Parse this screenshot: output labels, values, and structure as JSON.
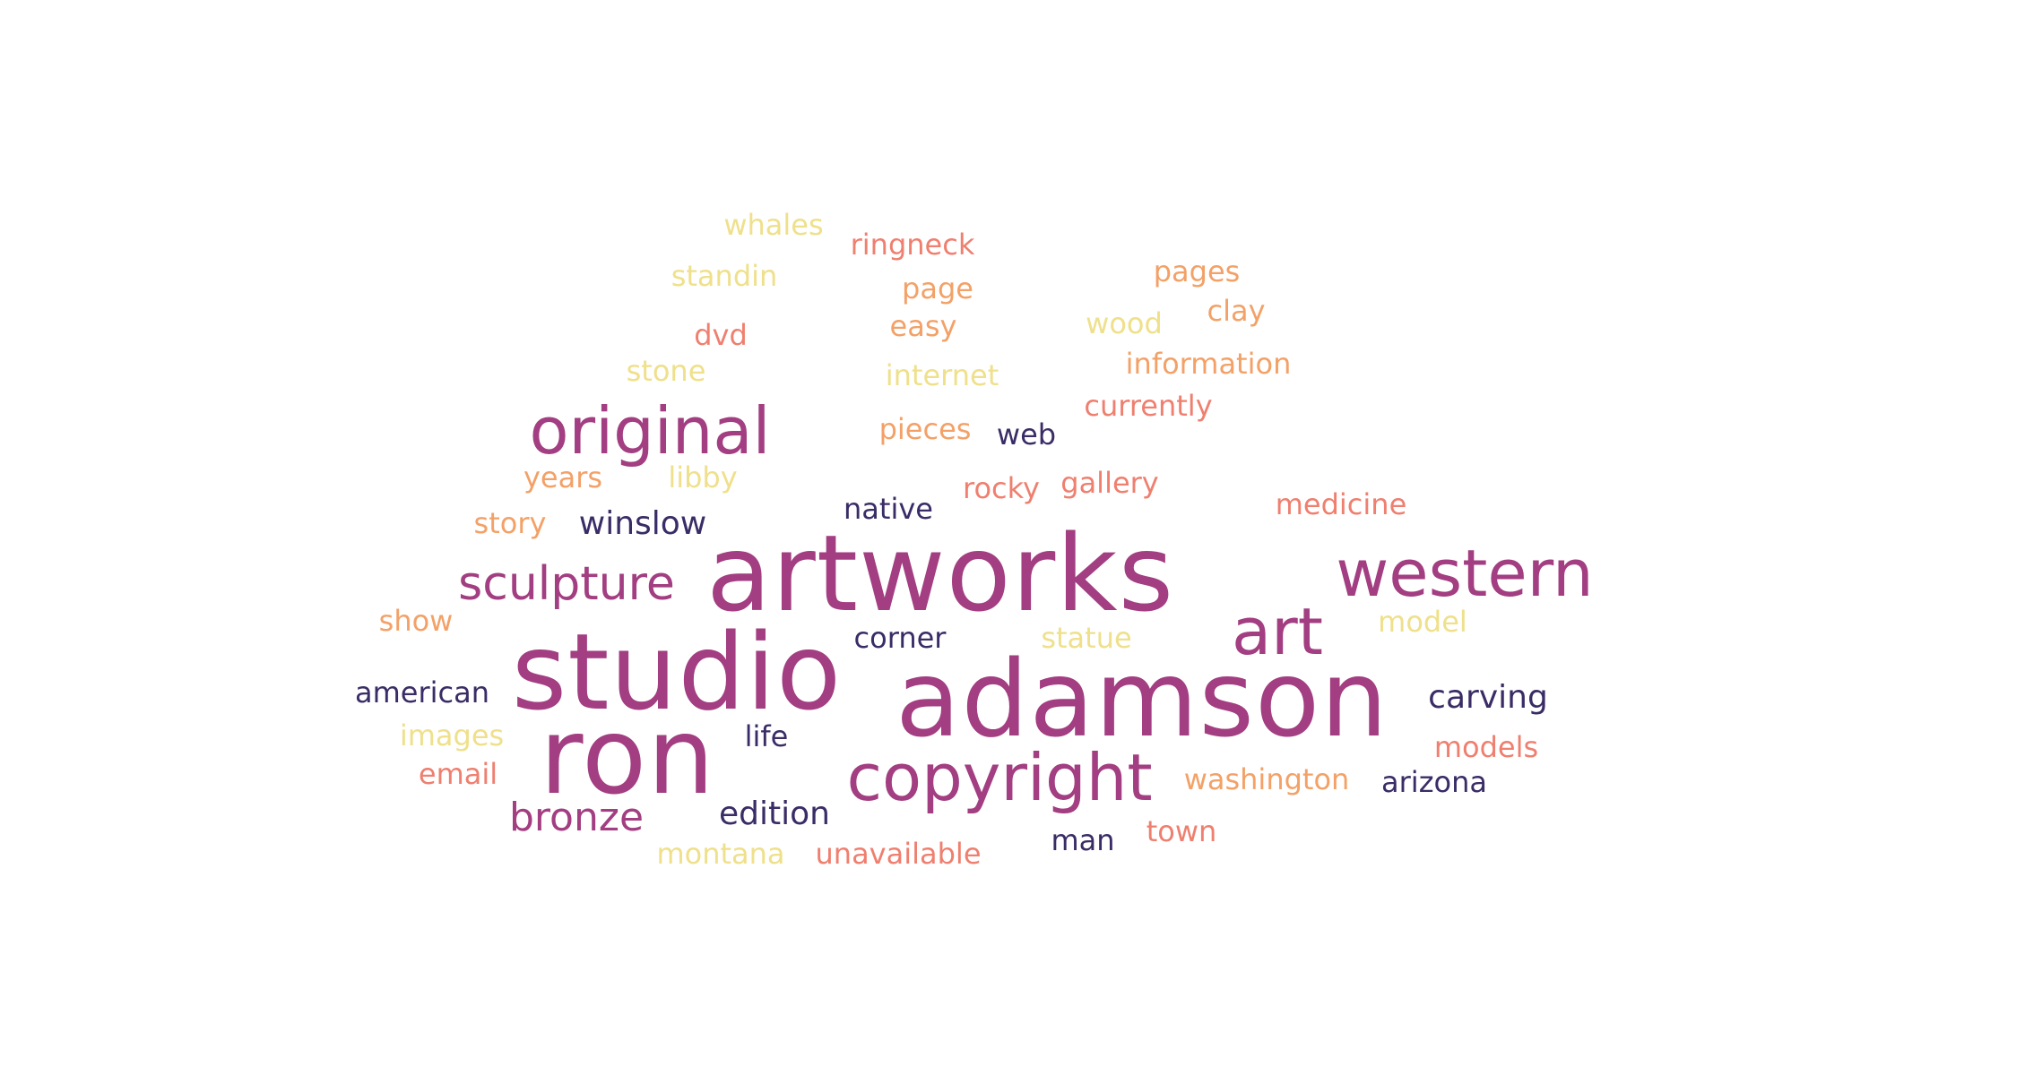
{
  "words": [
    {
      "key": "artworks",
      "text": "artworks",
      "color": "#a23e81"
    },
    {
      "key": "adamson",
      "text": "adamson",
      "color": "#a23e81"
    },
    {
      "key": "studio",
      "text": "studio",
      "color": "#a23e81"
    },
    {
      "key": "ron",
      "text": "ron",
      "color": "#a23e81"
    },
    {
      "key": "western",
      "text": "western",
      "color": "#a23e81"
    },
    {
      "key": "art",
      "text": "art",
      "color": "#a23e81"
    },
    {
      "key": "original",
      "text": "original",
      "color": "#a23e81"
    },
    {
      "key": "copyright",
      "text": "copyright",
      "color": "#a23e81"
    },
    {
      "key": "sculpture",
      "text": "sculpture",
      "color": "#a23e81"
    },
    {
      "key": "bronze",
      "text": "bronze",
      "color": "#a23e81"
    },
    {
      "key": "edition",
      "text": "edition",
      "color": "#3a2c66"
    },
    {
      "key": "winslow",
      "text": "winslow",
      "color": "#3a2c66"
    },
    {
      "key": "native",
      "text": "native",
      "color": "#3a2c66"
    },
    {
      "key": "web",
      "text": "web",
      "color": "#3a2c66"
    },
    {
      "key": "corner",
      "text": "corner",
      "color": "#3a2c66"
    },
    {
      "key": "american",
      "text": "american",
      "color": "#3a2c66"
    },
    {
      "key": "life",
      "text": "life",
      "color": "#3a2c66"
    },
    {
      "key": "carving",
      "text": "carving",
      "color": "#3a2c66"
    },
    {
      "key": "arizona",
      "text": "arizona",
      "color": "#3a2c66"
    },
    {
      "key": "man",
      "text": "man",
      "color": "#3a2c66"
    },
    {
      "key": "whales",
      "text": "whales",
      "color": "#efe08b"
    },
    {
      "key": "ringneck",
      "text": "ringneck",
      "color": "#ef7f6f"
    },
    {
      "key": "standin",
      "text": "standin",
      "color": "#efe08b"
    },
    {
      "key": "page",
      "text": "page",
      "color": "#f3a167"
    },
    {
      "key": "pages",
      "text": "pages",
      "color": "#f3a167"
    },
    {
      "key": "clay",
      "text": "clay",
      "color": "#f3a167"
    },
    {
      "key": "dvd",
      "text": "dvd",
      "color": "#ef7f6f"
    },
    {
      "key": "easy",
      "text": "easy",
      "color": "#f3a167"
    },
    {
      "key": "wood",
      "text": "wood",
      "color": "#efe08b"
    },
    {
      "key": "stone",
      "text": "stone",
      "color": "#efe08b"
    },
    {
      "key": "internet",
      "text": "internet",
      "color": "#efe08b"
    },
    {
      "key": "information",
      "text": "information",
      "color": "#f3a167"
    },
    {
      "key": "currently",
      "text": "currently",
      "color": "#ef7f6f"
    },
    {
      "key": "pieces",
      "text": "pieces",
      "color": "#f3a167"
    },
    {
      "key": "years",
      "text": "years",
      "color": "#f3a167"
    },
    {
      "key": "libby",
      "text": "libby",
      "color": "#efe08b"
    },
    {
      "key": "rocky",
      "text": "rocky",
      "color": "#ef7f6f"
    },
    {
      "key": "gallery",
      "text": "gallery",
      "color": "#ef7f6f"
    },
    {
      "key": "medicine",
      "text": "medicine",
      "color": "#ef7f6f"
    },
    {
      "key": "story",
      "text": "story",
      "color": "#f3a167"
    },
    {
      "key": "show",
      "text": "show",
      "color": "#f3a167"
    },
    {
      "key": "statue",
      "text": "statue",
      "color": "#efe08b"
    },
    {
      "key": "model",
      "text": "model",
      "color": "#efe08b"
    },
    {
      "key": "images",
      "text": "images",
      "color": "#efe08b"
    },
    {
      "key": "email",
      "text": "email",
      "color": "#ef7f6f"
    },
    {
      "key": "models",
      "text": "models",
      "color": "#ef7f6f"
    },
    {
      "key": "washington",
      "text": "washington",
      "color": "#f3a167"
    },
    {
      "key": "town",
      "text": "town",
      "color": "#ef7f6f"
    },
    {
      "key": "montana",
      "text": "montana",
      "color": "#efe08b"
    },
    {
      "key": "unavailable",
      "text": "unavailable",
      "color": "#ef7f6f"
    }
  ]
}
